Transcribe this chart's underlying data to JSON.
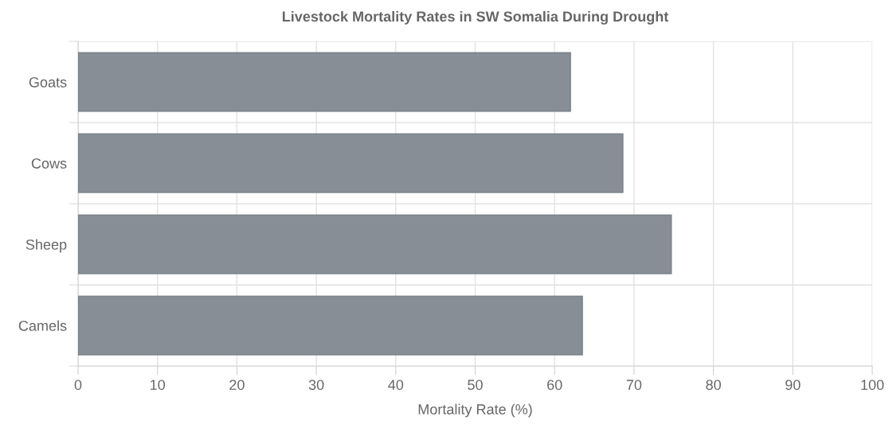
{
  "chart_data": {
    "type": "bar",
    "orientation": "horizontal",
    "title": "Livestock Mortality Rates in SW Somalia During Drought",
    "xlabel": "Mortality Rate (%)",
    "categories": [
      "Goats",
      "Cows",
      "Sheep",
      "Camels"
    ],
    "values": [
      62,
      68.6,
      74.7,
      63.5
    ],
    "color": "#878e95",
    "xlim": [
      0,
      100
    ],
    "xticks": [
      0,
      10,
      20,
      30,
      40,
      50,
      60,
      70,
      80,
      90,
      100
    ],
    "grid": true
  }
}
